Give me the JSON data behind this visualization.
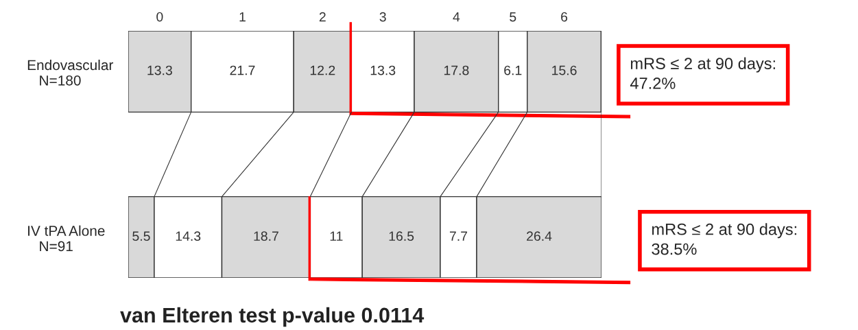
{
  "chart_data": {
    "type": "bar",
    "orientation": "horizontal",
    "stacked": true,
    "data_labels": true,
    "legend": false,
    "categories": [
      "Endovascular\n   N=180",
      "IV tPA Alone\n   N=91"
    ],
    "series": [
      {
        "name": "0",
        "color": "#d9d9d9",
        "values": [
          13.3,
          5.5
        ]
      },
      {
        "name": "1",
        "color": "#ffffff",
        "values": [
          21.7,
          14.3
        ]
      },
      {
        "name": "2",
        "color": "#d9d9d9",
        "values": [
          12.2,
          18.7
        ]
      },
      {
        "name": "3",
        "color": "#ffffff",
        "values": [
          13.3,
          11
        ]
      },
      {
        "name": "4",
        "color": "#d9d9d9",
        "values": [
          17.8,
          16.5
        ]
      },
      {
        "name": "5",
        "color": "#ffffff",
        "values": [
          6.1,
          7.7
        ]
      },
      {
        "name": "6",
        "color": "#d9d9d9",
        "values": [
          15.6,
          26.4
        ]
      }
    ],
    "annotations": [
      "mRS ≤ 2 at 90 days:\n47.2%",
      "mRS ≤ 2 at 90 days:\n38.5%",
      "van Elteren test p-value 0.0114"
    ]
  }
}
